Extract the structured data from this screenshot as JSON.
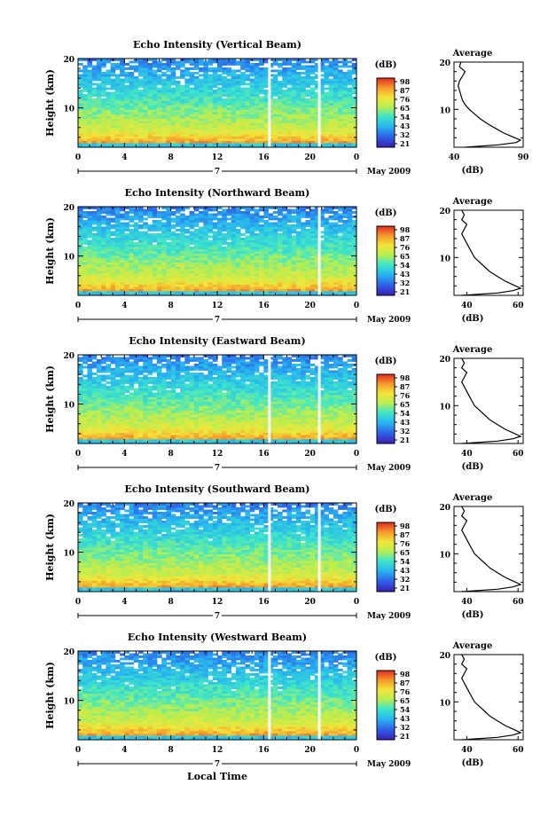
{
  "figure": {
    "xlabel": "Local Time",
    "date_label": "May 2009",
    "colorbar_unit": "(dB)",
    "avg_title": "Average",
    "avg_xlabel": "(dB)"
  },
  "chart_data": [
    {
      "type": "heatmap",
      "title": "Echo Intensity (Vertical Beam)",
      "ylabel": "Height (km)",
      "xticks": [
        "0",
        "4",
        "8",
        "12",
        "16",
        "20",
        "0"
      ],
      "day_label": "7",
      "yticks": [
        "20",
        "10"
      ],
      "xlim": [
        0,
        24
      ],
      "ylim": [
        2,
        20
      ],
      "colorbar_ticks": [
        "98",
        "87",
        "76",
        "65",
        "54",
        "43",
        "32",
        "21"
      ],
      "gaps": [
        16.5,
        20.8
      ],
      "average_profile": {
        "xticks": [
          "40",
          "90"
        ],
        "xlim": [
          40,
          90
        ],
        "yticks": [
          "20",
          "10"
        ],
        "height_km": [
          2,
          2.5,
          3,
          3.5,
          4,
          4.5,
          5,
          6,
          7,
          8,
          9,
          10,
          11,
          12,
          13,
          14,
          15,
          16,
          17,
          18,
          19,
          20
        ],
        "intensity_db": [
          48,
          72,
          85,
          88,
          84,
          80,
          76,
          70,
          64,
          59,
          55,
          51,
          48,
          46,
          45,
          44,
          43,
          44,
          46,
          48,
          44,
          45
        ]
      }
    },
    {
      "type": "heatmap",
      "title": "Echo Intensity (Northward Beam)",
      "ylabel": "Height (km)",
      "xticks": [
        "0",
        "4",
        "8",
        "12",
        "16",
        "20",
        "0"
      ],
      "day_label": "7",
      "yticks": [
        "20",
        "10"
      ],
      "xlim": [
        0,
        24
      ],
      "ylim": [
        2,
        20
      ],
      "colorbar_ticks": [
        "98",
        "87",
        "76",
        "65",
        "54",
        "43",
        "32",
        "21"
      ],
      "gaps": [
        20.8
      ],
      "average_profile": {
        "xticks": [
          "40",
          "60"
        ],
        "xlim": [
          35,
          62
        ],
        "yticks": [
          "20",
          "10"
        ],
        "height_km": [
          2,
          2.5,
          3,
          3.5,
          4,
          4.5,
          5,
          6,
          7,
          8,
          9,
          10,
          11,
          12,
          13,
          14,
          15,
          16,
          17,
          18,
          19,
          20
        ],
        "intensity_db": [
          38,
          52,
          58,
          61,
          59,
          57,
          55,
          52,
          49,
          47,
          45,
          43,
          42,
          41,
          40,
          39,
          38,
          39,
          40,
          38,
          39,
          38
        ]
      }
    },
    {
      "type": "heatmap",
      "title": "Echo Intensity (Eastward Beam)",
      "ylabel": "Height (km)",
      "xticks": [
        "0",
        "4",
        "8",
        "12",
        "16",
        "20",
        "0"
      ],
      "day_label": "7",
      "yticks": [
        "20",
        "10"
      ],
      "xlim": [
        0,
        24
      ],
      "ylim": [
        2,
        20
      ],
      "colorbar_ticks": [
        "98",
        "87",
        "76",
        "65",
        "54",
        "43",
        "32",
        "21"
      ],
      "gaps": [
        16.5,
        20.8
      ],
      "average_profile": {
        "xticks": [
          "40",
          "60"
        ],
        "xlim": [
          35,
          62
        ],
        "yticks": [
          "20",
          "10"
        ],
        "height_km": [
          2,
          2.5,
          3,
          3.5,
          4,
          4.5,
          5,
          6,
          7,
          8,
          9,
          10,
          11,
          12,
          13,
          14,
          15,
          16,
          17,
          18,
          19,
          20
        ],
        "intensity_db": [
          38,
          52,
          58,
          61,
          59,
          57,
          55,
          52,
          49,
          47,
          45,
          43,
          42,
          41,
          40,
          39,
          38,
          39,
          40,
          38,
          39,
          38
        ]
      }
    },
    {
      "type": "heatmap",
      "title": "Echo Intensity (Southward Beam)",
      "ylabel": "Height (km)",
      "xticks": [
        "0",
        "4",
        "8",
        "12",
        "16",
        "20",
        "0"
      ],
      "day_label": "7",
      "yticks": [
        "20",
        "10"
      ],
      "xlim": [
        0,
        24
      ],
      "ylim": [
        2,
        20
      ],
      "colorbar_ticks": [
        "98",
        "87",
        "76",
        "65",
        "54",
        "43",
        "32",
        "21"
      ],
      "gaps": [
        16.5,
        20.8
      ],
      "average_profile": {
        "xticks": [
          "40",
          "60"
        ],
        "xlim": [
          35,
          62
        ],
        "yticks": [
          "20",
          "10"
        ],
        "height_km": [
          2,
          2.5,
          3,
          3.5,
          4,
          4.5,
          5,
          6,
          7,
          8,
          9,
          10,
          11,
          12,
          13,
          14,
          15,
          16,
          17,
          18,
          19,
          20
        ],
        "intensity_db": [
          38,
          52,
          58,
          61,
          59,
          57,
          55,
          52,
          49,
          47,
          45,
          43,
          42,
          41,
          40,
          39,
          38,
          39,
          40,
          38,
          39,
          38
        ]
      }
    },
    {
      "type": "heatmap",
      "title": "Echo Intensity (Westward Beam)",
      "ylabel": "Height (km)",
      "xticks": [
        "0",
        "4",
        "8",
        "12",
        "16",
        "20",
        "0"
      ],
      "day_label": "7",
      "yticks": [
        "20",
        "10"
      ],
      "xlim": [
        0,
        24
      ],
      "ylim": [
        2,
        20
      ],
      "colorbar_ticks": [
        "98",
        "87",
        "76",
        "65",
        "54",
        "43",
        "32",
        "21"
      ],
      "gaps": [
        16.5,
        20.8
      ],
      "average_profile": {
        "xticks": [
          "40",
          "60"
        ],
        "xlim": [
          35,
          62
        ],
        "yticks": [
          "20",
          "10"
        ],
        "height_km": [
          2,
          2.5,
          3,
          3.5,
          4,
          4.5,
          5,
          6,
          7,
          8,
          9,
          10,
          11,
          12,
          13,
          14,
          15,
          16,
          17,
          18,
          19,
          20
        ],
        "intensity_db": [
          38,
          52,
          58,
          61,
          59,
          57,
          55,
          52,
          49,
          47,
          45,
          43,
          42,
          41,
          40,
          39,
          38,
          39,
          40,
          38,
          39,
          38
        ]
      }
    }
  ]
}
